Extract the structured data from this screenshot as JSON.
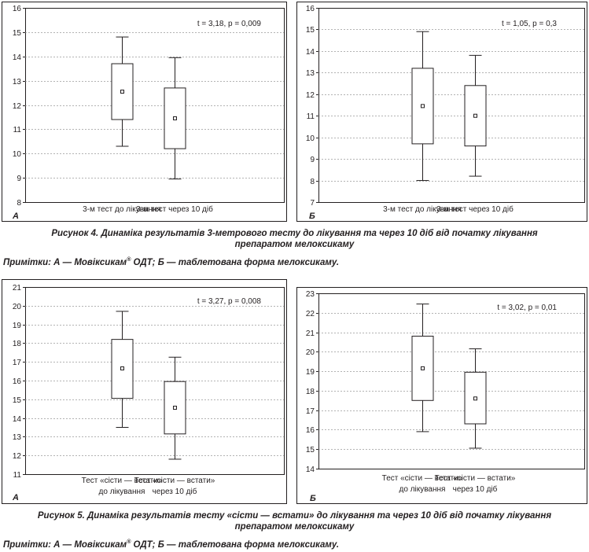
{
  "figure4": {
    "caption_line1": "Рисунок 4. Динаміка результатів 3-метрового тесту до лікування та через 10 діб від початку лікування",
    "caption_line2": "препаратом мелоксикаму",
    "note_prefix": "Примітки: А — Мовіксикам",
    "note_reg": "®",
    "note_suffix": " ОДТ; Б — таблетована форма мелоксикаму."
  },
  "figure5": {
    "caption_line1": "Рисунок 5. Динаміка результатів тесту «сісти — встати» до лікування та через 10 діб від початку лікування",
    "caption_line2": "препаратом мелоксикаму",
    "note_prefix": "Примітки: А — Мовіксикам",
    "note_reg": "®",
    "note_suffix": " ОДТ; Б — таблетована форма мелоксикаму."
  },
  "chart_data": [
    {
      "type": "box",
      "panel_label": "А",
      "stat_text": "t = 3,18, p = 0,009",
      "ylim": [
        8,
        16
      ],
      "yticks": [
        "8",
        "9",
        "10",
        "11",
        "12",
        "13",
        "14",
        "15",
        "16"
      ],
      "grid": true,
      "categories": [
        [
          "3-м тест до лікування"
        ],
        [
          "3-м тест через 10 діб"
        ]
      ],
      "boxes": [
        {
          "min": 10.3,
          "q1": 11.4,
          "mean": 12.55,
          "q3": 13.7,
          "max": 14.8
        },
        {
          "min": 8.95,
          "q1": 10.2,
          "mean": 11.45,
          "q3": 12.7,
          "max": 13.95
        }
      ]
    },
    {
      "type": "box",
      "panel_label": "Б",
      "stat_text": "t = 1,05, p = 0,3",
      "ylim": [
        7,
        16
      ],
      "yticks": [
        "7",
        "8",
        "9",
        "10",
        "11",
        "12",
        "13",
        "14",
        "15",
        "16"
      ],
      "grid": true,
      "categories": [
        [
          "3-м тест до лікування"
        ],
        [
          "3-м тест через 10 діб"
        ]
      ],
      "boxes": [
        {
          "min": 8.0,
          "q1": 9.7,
          "mean": 11.45,
          "q3": 13.2,
          "max": 14.9
        },
        {
          "min": 8.2,
          "q1": 9.6,
          "mean": 11.0,
          "q3": 12.4,
          "max": 13.8
        }
      ]
    },
    {
      "type": "box",
      "panel_label": "А",
      "stat_text": "t = 3,27, p = 0,008",
      "ylim": [
        11,
        21
      ],
      "yticks": [
        "11",
        "12",
        "13",
        "14",
        "15",
        "16",
        "17",
        "18",
        "19",
        "20",
        "21"
      ],
      "grid": true,
      "categories": [
        [
          "Тест «сісти — встати»",
          "до лікування"
        ],
        [
          "Тест «сісти — встати»",
          "через 10 діб"
        ]
      ],
      "boxes": [
        {
          "min": 13.5,
          "q1": 15.05,
          "mean": 16.65,
          "q3": 18.2,
          "max": 19.7
        },
        {
          "min": 11.8,
          "q1": 13.15,
          "mean": 14.55,
          "q3": 15.95,
          "max": 17.25
        }
      ]
    },
    {
      "type": "box",
      "panel_label": "Б",
      "stat_text": "t = 3,02, p = 0,01",
      "ylim": [
        14,
        23
      ],
      "yticks": [
        "14",
        "15",
        "16",
        "17",
        "18",
        "19",
        "20",
        "21",
        "22",
        "23"
      ],
      "grid": true,
      "categories": [
        [
          "Тест «сісти — встати»",
          "до лікування"
        ],
        [
          "Тест «сісти — встати»",
          "через 10 діб"
        ]
      ],
      "boxes": [
        {
          "min": 15.9,
          "q1": 17.5,
          "mean": 19.15,
          "q3": 20.8,
          "max": 22.45
        },
        {
          "min": 15.05,
          "q1": 16.3,
          "mean": 17.6,
          "q3": 18.95,
          "max": 20.15
        }
      ]
    }
  ]
}
